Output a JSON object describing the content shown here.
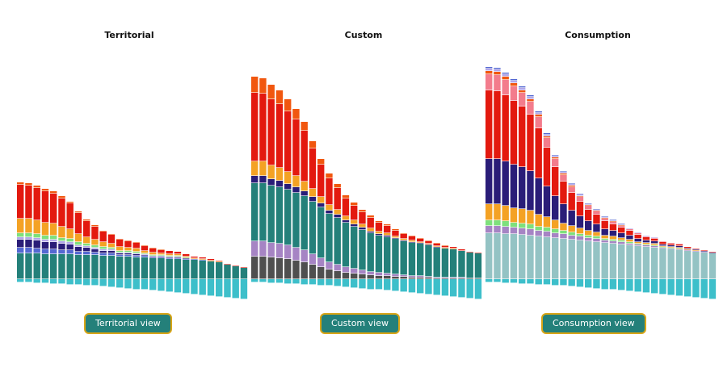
{
  "colors": {
    "teal": "#24807a",
    "cyan": "#3dbfca",
    "blue": "#5468d2",
    "navy": "#2a1d78",
    "green": "#7ee07c",
    "lavender": "#b3a6e8",
    "orange": "#f4a224",
    "red": "#e3190f",
    "darkorange": "#f1570f",
    "purple": "#a684c4",
    "darkgray": "#4f4f4f",
    "paleteal": "#94c3c4",
    "pink": "#f37c8c",
    "button_border": "#d9a516"
  },
  "chart_data": [
    {
      "type": "bar",
      "title": "Territorial",
      "stacked": true,
      "button_label": "Territorial view",
      "bar_count": 28,
      "series": [
        {
          "color": "cyan",
          "values": [
            -4,
            -4,
            -5,
            -5,
            -6,
            -6,
            -7,
            -7,
            -8,
            -8,
            -9,
            -10,
            -11,
            -12,
            -13,
            -13,
            -14,
            -15,
            -16,
            -17,
            -18,
            -19,
            -20,
            -21,
            -22,
            -23,
            -24,
            -25
          ]
        },
        {
          "color": "teal",
          "values": [
            32,
            32,
            32,
            31,
            31,
            31,
            31,
            30,
            30,
            30,
            29,
            29,
            28,
            28,
            27,
            27,
            26,
            26,
            25,
            25,
            24,
            24,
            23,
            22,
            21,
            18,
            16,
            14
          ]
        },
        {
          "color": "blue",
          "values": [
            7,
            7,
            6,
            6,
            6,
            5,
            5,
            4,
            4,
            3,
            3,
            3,
            2,
            2,
            2,
            2,
            1,
            1,
            1,
            1,
            1,
            1,
            1,
            0,
            0,
            0,
            0,
            0
          ]
        },
        {
          "color": "navy",
          "values": [
            10,
            10,
            10,
            9,
            9,
            8,
            7,
            6,
            5,
            4,
            3,
            3,
            2,
            2,
            2,
            1,
            1,
            1,
            1,
            1,
            1,
            0,
            0,
            0,
            0,
            0,
            0,
            0
          ]
        },
        {
          "color": "lavender",
          "values": [
            3,
            3,
            3,
            3,
            3,
            3,
            3,
            2,
            2,
            2,
            2,
            2,
            1,
            1,
            1,
            1,
            1,
            1,
            1,
            1,
            0,
            0,
            0,
            0,
            0,
            0,
            0,
            0
          ]
        },
        {
          "color": "green",
          "values": [
            5,
            5,
            5,
            5,
            5,
            4,
            4,
            4,
            3,
            3,
            3,
            2,
            2,
            2,
            2,
            1,
            1,
            1,
            1,
            1,
            1,
            0,
            0,
            0,
            0,
            0,
            0,
            0
          ]
        },
        {
          "color": "orange",
          "values": [
            18,
            18,
            17,
            16,
            15,
            14,
            12,
            10,
            8,
            7,
            6,
            5,
            5,
            4,
            4,
            3,
            3,
            2,
            2,
            2,
            1,
            1,
            1,
            1,
            1,
            0,
            0,
            0
          ]
        },
        {
          "color": "red",
          "values": [
            42,
            41,
            40,
            39,
            37,
            35,
            32,
            26,
            20,
            16,
            13,
            11,
            9,
            8,
            7,
            6,
            5,
            4,
            4,
            3,
            3,
            2,
            2,
            2,
            1,
            1,
            1,
            1
          ]
        },
        {
          "color": "darkorange",
          "values": [
            3,
            3,
            3,
            3,
            3,
            3,
            2,
            2,
            2,
            2,
            1,
            1,
            1,
            1,
            1,
            1,
            1,
            1,
            0,
            0,
            0,
            0,
            0,
            0,
            0,
            0,
            0,
            0
          ]
        }
      ]
    },
    {
      "type": "bar",
      "title": "Custom",
      "stacked": true,
      "button_label": "Custom view",
      "bar_count": 28,
      "series": [
        {
          "color": "cyan",
          "values": [
            -4,
            -4,
            -5,
            -5,
            -6,
            -6,
            -7,
            -7,
            -8,
            -8,
            -9,
            -10,
            -11,
            -12,
            -13,
            -13,
            -14,
            -15,
            -16,
            -17,
            -18,
            -19,
            -20,
            -21,
            -22,
            -23,
            -24,
            -25
          ]
        },
        {
          "color": "darkgray",
          "values": [
            28,
            28,
            27,
            26,
            25,
            23,
            21,
            18,
            15,
            12,
            10,
            8,
            7,
            6,
            5,
            4,
            4,
            3,
            3,
            2,
            2,
            2,
            1,
            1,
            1,
            1,
            1,
            1
          ]
        },
        {
          "color": "purple",
          "values": [
            19,
            19,
            18,
            18,
            17,
            16,
            15,
            13,
            11,
            9,
            8,
            7,
            6,
            5,
            4,
            4,
            3,
            3,
            2,
            2,
            2,
            1,
            1,
            1,
            1,
            1,
            0,
            0
          ]
        },
        {
          "color": "teal",
          "values": [
            72,
            72,
            71,
            70,
            69,
            68,
            67,
            65,
            63,
            60,
            58,
            55,
            52,
            50,
            48,
            46,
            45,
            44,
            42,
            41,
            40,
            39,
            37,
            36,
            35,
            33,
            32,
            31
          ]
        },
        {
          "color": "navy",
          "values": [
            9,
            9,
            8,
            8,
            7,
            7,
            6,
            6,
            5,
            4,
            4,
            3,
            3,
            3,
            2,
            2,
            2,
            1,
            1,
            1,
            1,
            1,
            1,
            0,
            0,
            0,
            0,
            0
          ]
        },
        {
          "color": "orange",
          "values": [
            18,
            18,
            17,
            16,
            15,
            14,
            12,
            10,
            8,
            7,
            6,
            5,
            5,
            4,
            4,
            3,
            3,
            2,
            2,
            2,
            1,
            1,
            1,
            1,
            1,
            0,
            0,
            0
          ]
        },
        {
          "color": "red",
          "values": [
            85,
            84,
            82,
            79,
            75,
            70,
            63,
            50,
            40,
            33,
            27,
            22,
            18,
            15,
            13,
            11,
            9,
            7,
            6,
            5,
            4,
            3,
            3,
            2,
            2,
            2,
            1,
            1
          ]
        },
        {
          "color": "darkorange",
          "values": [
            20,
            19,
            18,
            17,
            15,
            13,
            11,
            9,
            7,
            6,
            5,
            4,
            4,
            3,
            3,
            2,
            2,
            2,
            1,
            1,
            1,
            1,
            1,
            1,
            0,
            0,
            0,
            0
          ]
        }
      ]
    },
    {
      "type": "bar",
      "title": "Consumption",
      "stacked": true,
      "button_label": "Consumption view",
      "bar_count": 28,
      "series": [
        {
          "color": "cyan",
          "values": [
            -4,
            -4,
            -5,
            -5,
            -6,
            -6,
            -7,
            -7,
            -8,
            -8,
            -9,
            -10,
            -11,
            -12,
            -13,
            -13,
            -14,
            -15,
            -16,
            -17,
            -18,
            -19,
            -20,
            -21,
            -22,
            -23,
            -24,
            -25
          ]
        },
        {
          "color": "paleteal",
          "values": [
            57,
            57,
            56,
            56,
            55,
            54,
            53,
            52,
            51,
            50,
            49,
            48,
            47,
            46,
            45,
            44,
            43,
            42,
            41,
            40,
            39,
            38,
            37,
            36,
            35,
            34,
            33,
            32
          ]
        },
        {
          "color": "purple",
          "values": [
            9,
            9,
            9,
            8,
            8,
            8,
            7,
            7,
            6,
            6,
            5,
            5,
            4,
            4,
            3,
            3,
            3,
            2,
            2,
            2,
            2,
            1,
            1,
            1,
            1,
            1,
            1,
            0
          ]
        },
        {
          "color": "green",
          "values": [
            7,
            7,
            7,
            6,
            6,
            6,
            5,
            5,
            5,
            4,
            4,
            3,
            3,
            3,
            2,
            2,
            2,
            2,
            1,
            1,
            1,
            1,
            1,
            1,
            0,
            0,
            0,
            0
          ]
        },
        {
          "color": "orange",
          "values": [
            20,
            20,
            19,
            18,
            18,
            17,
            15,
            13,
            11,
            9,
            8,
            7,
            6,
            5,
            4,
            4,
            3,
            3,
            2,
            2,
            2,
            1,
            1,
            1,
            1,
            1,
            0,
            0
          ]
        },
        {
          "color": "navy",
          "values": [
            56,
            56,
            55,
            54,
            52,
            49,
            45,
            38,
            30,
            24,
            19,
            15,
            12,
            10,
            8,
            7,
            6,
            5,
            4,
            3,
            3,
            2,
            2,
            2,
            1,
            1,
            1,
            1
          ]
        },
        {
          "color": "red",
          "values": [
            85,
            84,
            82,
            79,
            75,
            70,
            62,
            48,
            36,
            28,
            22,
            18,
            14,
            12,
            10,
            8,
            7,
            6,
            5,
            4,
            3,
            3,
            2,
            2,
            2,
            1,
            1,
            1
          ]
        },
        {
          "color": "pink",
          "values": [
            20,
            20,
            19,
            18,
            17,
            16,
            14,
            12,
            10,
            8,
            7,
            6,
            5,
            4,
            3,
            3,
            2,
            2,
            2,
            1,
            1,
            1,
            1,
            1,
            0,
            0,
            0,
            0
          ]
        },
        {
          "color": "darkorange",
          "values": [
            4,
            4,
            4,
            4,
            3,
            3,
            3,
            2,
            2,
            2,
            2,
            1,
            1,
            1,
            1,
            1,
            1,
            0,
            0,
            0,
            0,
            0,
            0,
            0,
            0,
            0,
            0,
            0
          ]
        },
        {
          "color": "lavender",
          "values": [
            3,
            3,
            3,
            3,
            3,
            3,
            2,
            2,
            2,
            2,
            2,
            2,
            1,
            1,
            1,
            1,
            1,
            1,
            1,
            1,
            1,
            0,
            0,
            0,
            0,
            0,
            0,
            0
          ]
        },
        {
          "color": "blue",
          "values": [
            2,
            2,
            2,
            2,
            2,
            2,
            2,
            2,
            1,
            1,
            1,
            1,
            1,
            1,
            1,
            1,
            1,
            0,
            0,
            0,
            0,
            0,
            0,
            0,
            0,
            0,
            0,
            0
          ]
        }
      ]
    }
  ]
}
